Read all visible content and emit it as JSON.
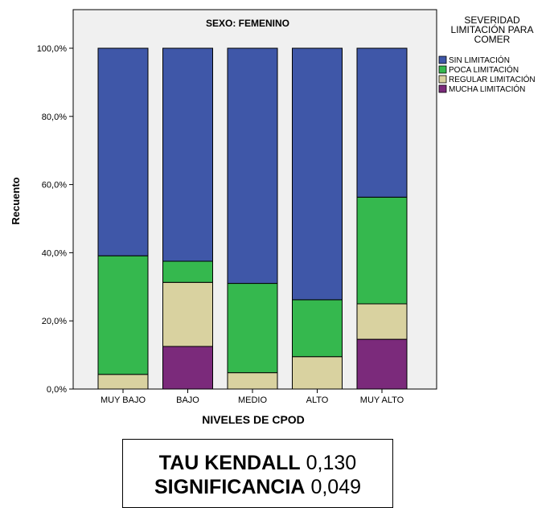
{
  "chart_data": {
    "type": "bar",
    "stacked": true,
    "title": "SEXO: FEMENINO",
    "xlabel": "NIVELES DE CPOD",
    "ylabel": "Recuento",
    "categories": [
      "MUY BAJO",
      "BAJO",
      "MEDIO",
      "ALTO",
      "MUY ALTO"
    ],
    "y_ticks": [
      "0,0%",
      "20,0%",
      "40,0%",
      "60,0%",
      "80,0%",
      "100,0%"
    ],
    "ylim": [
      0,
      100
    ],
    "legend": {
      "title_lines": [
        "SEVERIDAD",
        "LIMITACIÓN PARA",
        "COMER"
      ],
      "placement": "right"
    },
    "series": [
      {
        "name": "MUCHA LIMITACIÓN",
        "color": "#7b2a7b",
        "values": [
          0,
          12.5,
          0,
          0,
          14.6
        ]
      },
      {
        "name": "REGULAR LIMITACIÓN",
        "color": "#d9d2a0",
        "values": [
          4.3,
          18.8,
          4.8,
          9.5,
          10.4
        ]
      },
      {
        "name": "POCA LIMITACIÓN",
        "color": "#35b84e",
        "values": [
          34.8,
          6.2,
          26.2,
          16.7,
          31.3
        ]
      },
      {
        "name": "SIN LIMITACIÓN",
        "color": "#3f57a8",
        "values": [
          60.9,
          62.5,
          69.0,
          73.8,
          43.7
        ]
      }
    ],
    "legend_order": [
      "SIN LIMITACIÓN",
      "POCA LIMITACIÓN",
      "REGULAR LIMITACIÓN",
      "MUCHA LIMITACIÓN"
    ],
    "plot_background": "#f0f0f0",
    "grid": false
  },
  "stats": {
    "tau_label": "TAU KENDALL",
    "tau_value": "0,130",
    "sig_label": "SIGNIFICANCIA",
    "sig_value": "0,049"
  }
}
